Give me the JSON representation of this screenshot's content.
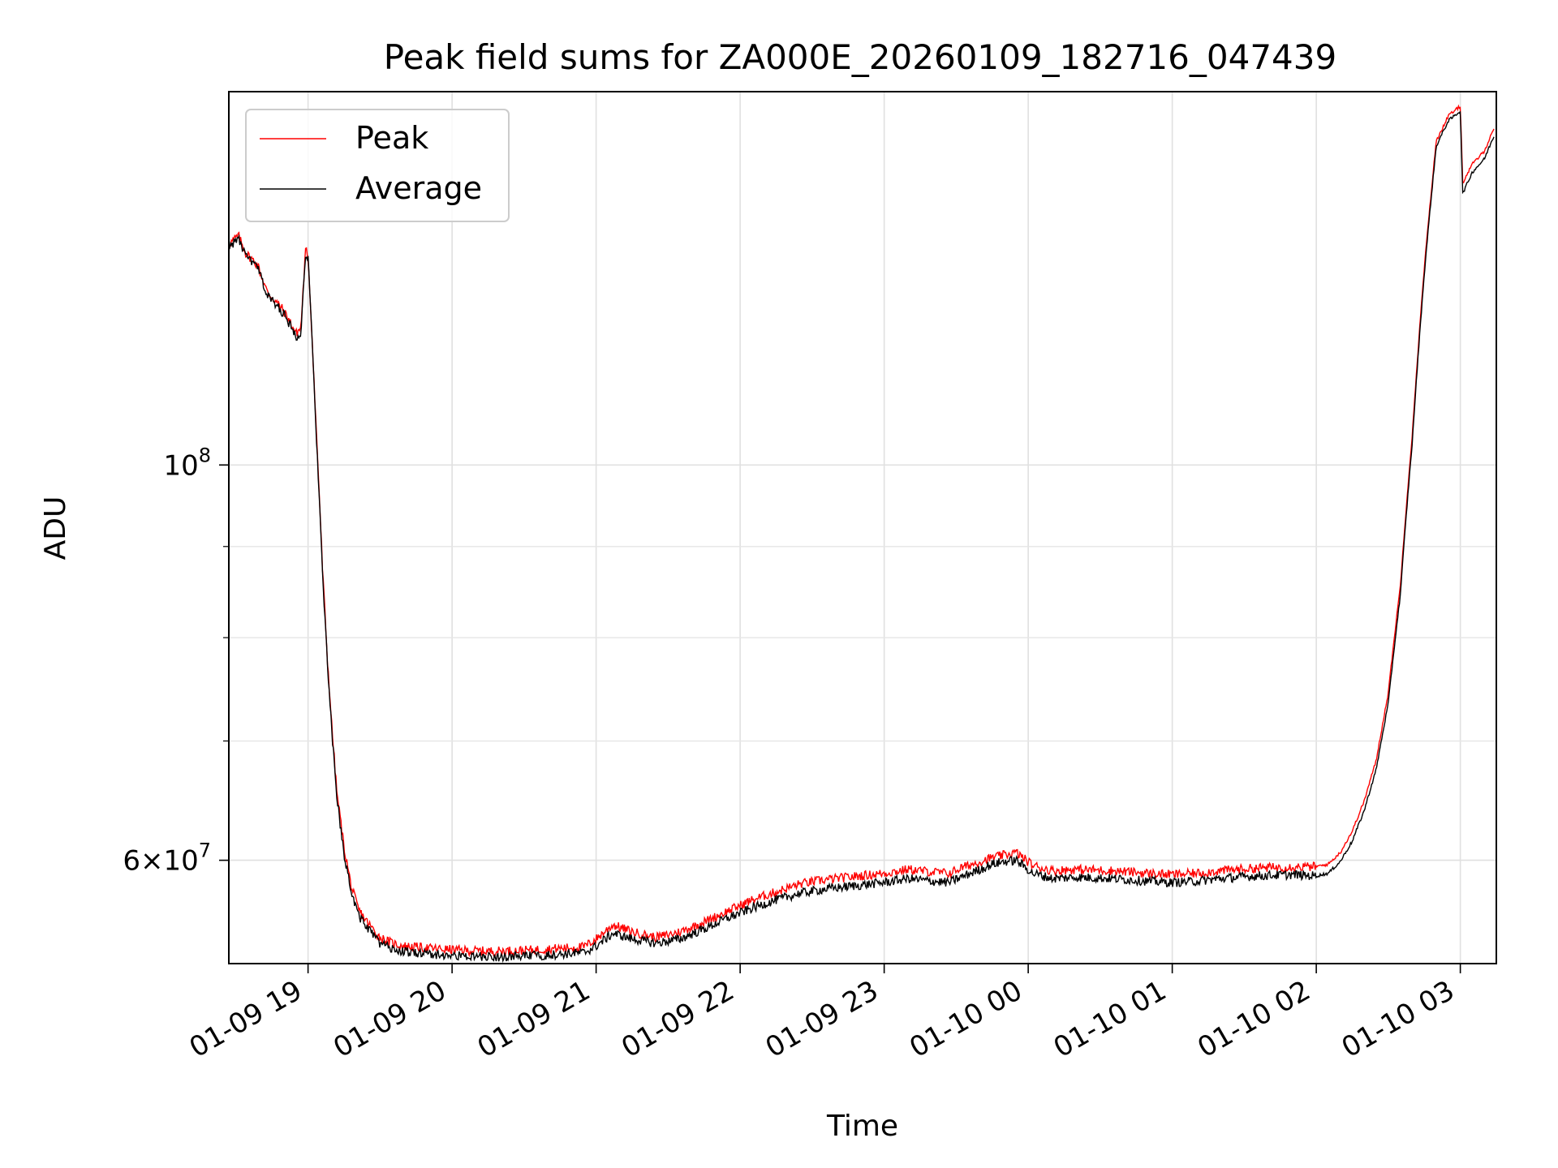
{
  "chart_data": {
    "type": "line",
    "title": "Peak field sums for ZA000E_20260109_182716_047439",
    "xlabel": "Time",
    "ylabel": "ADU",
    "y_scale": "log",
    "xlim": [
      "01-09 18:27",
      "01-10 03:15"
    ],
    "ylim": [
      52500000,
      162000000
    ],
    "grid": true,
    "legend_position": "top-left",
    "x_ticks": [
      "01-09 19",
      "01-09 20",
      "01-09 21",
      "01-09 22",
      "01-09 23",
      "01-10 00",
      "01-10 01",
      "01-10 02",
      "01-10 03"
    ],
    "x_tick_times": [
      "01-09 19:00",
      "01-09 20:00",
      "01-09 21:00",
      "01-09 22:00",
      "01-09 23:00",
      "01-10 00:00",
      "01-10 01:00",
      "01-10 02:00",
      "01-10 03:00"
    ],
    "y_ticks": [
      {
        "value": 100000000,
        "base": "10",
        "exp": "8"
      },
      {
        "value": 60000000,
        "mant": "6",
        "base": "10",
        "exp": "7"
      }
    ],
    "y_minor_ticks": [
      70000000,
      80000000,
      90000000
    ],
    "series": [
      {
        "name": "Peak",
        "color": "#ff0000",
        "x": [
          "01-09 18:27",
          "01-09 18:31",
          "01-09 18:34",
          "01-09 18:39",
          "01-09 18:43",
          "01-09 18:49",
          "01-09 18:53",
          "01-09 18:55",
          "01-09 18:56",
          "01-09 18:57",
          "01-09 18:59",
          "01-09 19:00",
          "01-09 19:03",
          "01-09 19:06",
          "01-09 19:08",
          "01-09 19:10",
          "01-09 19:12",
          "01-09 19:15",
          "01-09 19:18",
          "01-09 19:21",
          "01-09 19:25",
          "01-09 19:30",
          "01-09 19:35",
          "01-09 19:40",
          "01-09 19:47",
          "01-09 19:55",
          "01-09 20:05",
          "01-09 20:15",
          "01-09 20:30",
          "01-09 20:45",
          "01-09 20:55",
          "01-09 21:00",
          "01-09 21:07",
          "01-09 21:15",
          "01-09 21:25",
          "01-09 21:35",
          "01-09 21:45",
          "01-09 21:55",
          "01-09 22:05",
          "01-09 22:15",
          "01-09 22:25",
          "01-09 22:35",
          "01-09 22:45",
          "01-09 23:00",
          "01-09 23:10",
          "01-09 23:20",
          "01-09 23:27",
          "01-09 23:32",
          "01-09 23:40",
          "01-09 23:45",
          "01-09 23:50",
          "01-09 23:55",
          "01-10 00:02",
          "01-10 00:10",
          "01-10 00:20",
          "01-10 00:35",
          "01-10 00:50",
          "01-10 01:00",
          "01-10 01:10",
          "01-10 01:20",
          "01-10 01:35",
          "01-10 01:50",
          "01-10 02:00",
          "01-10 02:05",
          "01-10 02:10",
          "01-10 02:15",
          "01-10 02:20",
          "01-10 02:25",
          "01-10 02:30",
          "01-10 02:35",
          "01-10 02:40",
          "01-10 02:45",
          "01-10 02:50",
          "01-10 02:55",
          "01-10 03:00",
          "01-10 03:01",
          "01-10 03:05",
          "01-10 03:10",
          "01-10 03:14"
        ],
        "y": [
          133000000,
          134500000,
          131500000,
          129500000,
          125000000,
          122500000,
          120000000,
          118500000,
          119000000,
          119300000,
          132000000,
          131000000,
          107500000,
          87500000,
          78000000,
          71000000,
          65500000,
          61000000,
          58000000,
          56300000,
          55300000,
          54300000,
          53900000,
          53700000,
          53600000,
          53500000,
          53400000,
          53350000,
          53400000,
          53550000,
          53650000,
          54200000,
          55200000,
          54700000,
          54300000,
          54700000,
          55400000,
          56200000,
          57000000,
          57600000,
          58200000,
          58500000,
          58700000,
          59000000,
          59300000,
          59100000,
          59000000,
          59400000,
          59900000,
          60200000,
          60400000,
          60600000,
          59600000,
          59200000,
          59300000,
          59200000,
          59000000,
          58900000,
          59000000,
          59200000,
          59400000,
          59500000,
          59500000,
          59700000,
          60600000,
          62300000,
          64800000,
          68300000,
          74500000,
          85500000,
          104000000,
          129000000,
          152000000,
          157000000,
          159000000,
          144000000,
          147500000,
          150000000,
          154500000
        ]
      },
      {
        "name": "Average",
        "color": "#000000",
        "x": [
          "01-09 18:27",
          "01-09 18:31",
          "01-09 18:34",
          "01-09 18:39",
          "01-09 18:43",
          "01-09 18:49",
          "01-09 18:53",
          "01-09 18:55",
          "01-09 18:56",
          "01-09 18:57",
          "01-09 18:59",
          "01-09 19:00",
          "01-09 19:03",
          "01-09 19:06",
          "01-09 19:08",
          "01-09 19:10",
          "01-09 19:12",
          "01-09 19:15",
          "01-09 19:18",
          "01-09 19:21",
          "01-09 19:25",
          "01-09 19:30",
          "01-09 19:35",
          "01-09 19:40",
          "01-09 19:47",
          "01-09 19:55",
          "01-09 20:05",
          "01-09 20:15",
          "01-09 20:30",
          "01-09 20:45",
          "01-09 20:55",
          "01-09 21:00",
          "01-09 21:07",
          "01-09 21:15",
          "01-09 21:25",
          "01-09 21:35",
          "01-09 21:45",
          "01-09 21:55",
          "01-09 22:05",
          "01-09 22:15",
          "01-09 22:25",
          "01-09 22:35",
          "01-09 22:45",
          "01-09 23:00",
          "01-09 23:10",
          "01-09 23:20",
          "01-09 23:27",
          "01-09 23:32",
          "01-09 23:40",
          "01-09 23:45",
          "01-09 23:50",
          "01-09 23:55",
          "01-10 00:02",
          "01-10 00:10",
          "01-10 00:20",
          "01-10 00:35",
          "01-10 00:50",
          "01-10 01:00",
          "01-10 01:10",
          "01-10 01:20",
          "01-10 01:35",
          "01-10 01:50",
          "01-10 02:00",
          "01-10 02:05",
          "01-10 02:10",
          "01-10 02:15",
          "01-10 02:20",
          "01-10 02:25",
          "01-10 02:30",
          "01-10 02:35",
          "01-10 02:40",
          "01-10 02:45",
          "01-10 02:50",
          "01-10 02:55",
          "01-10 03:00",
          "01-10 03:01",
          "01-10 03:05",
          "01-10 03:10",
          "01-10 03:14"
        ],
        "y": [
          132500000,
          134000000,
          131000000,
          129000000,
          124500000,
          122000000,
          119500000,
          118000000,
          118500000,
          118800000,
          131500000,
          130500000,
          107000000,
          87000000,
          77500000,
          70500000,
          65000000,
          60500000,
          57600000,
          55900000,
          54900000,
          53900000,
          53500000,
          53300000,
          53200000,
          53100000,
          53000000,
          52950000,
          53000000,
          53150000,
          53250000,
          53700000,
          54600000,
          54200000,
          53900000,
          54200000,
          54900000,
          55700000,
          56400000,
          57000000,
          57500000,
          57800000,
          58000000,
          58300000,
          58600000,
          58400000,
          58300000,
          58700000,
          59300000,
          59700000,
          59900000,
          60000000,
          59000000,
          58600000,
          58700000,
          58600000,
          58400000,
          58300000,
          58400000,
          58600000,
          58800000,
          58900000,
          58800000,
          59000000,
          59900000,
          61500000,
          64000000,
          67500000,
          73500000,
          84500000,
          103000000,
          128000000,
          151000000,
          156000000,
          158000000,
          142000000,
          146000000,
          148500000,
          153000000
        ]
      }
    ]
  }
}
